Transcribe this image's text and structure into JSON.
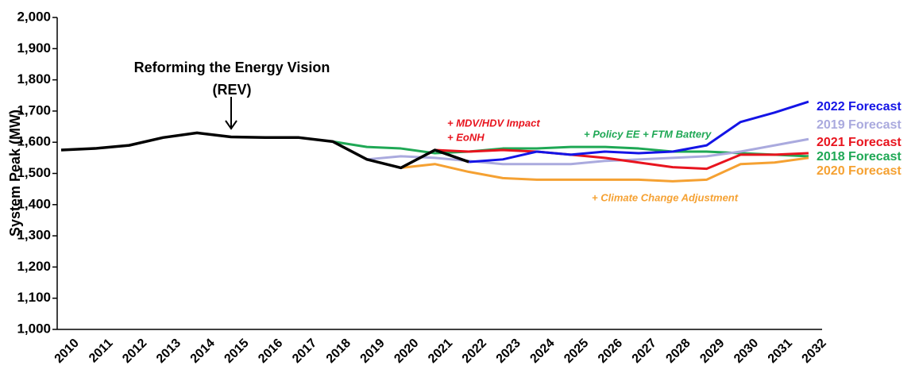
{
  "chart_data": {
    "type": "line",
    "y_label": "System Peak (MW)",
    "categories": [
      "2010",
      "2011",
      "2012",
      "2013",
      "2014",
      "2015",
      "2016",
      "2017",
      "2018",
      "2019",
      "2020",
      "2021",
      "2022",
      "2023",
      "2024",
      "2025",
      "2026",
      "2027",
      "2028",
      "2029",
      "2030",
      "2031",
      "2032"
    ],
    "ylim": [
      1000,
      2000
    ],
    "yticks": [
      {
        "value": 1000,
        "label": "1,000"
      },
      {
        "value": 1100,
        "label": "1,100"
      },
      {
        "value": 1200,
        "label": "1,200"
      },
      {
        "value": 1300,
        "label": "1,300"
      },
      {
        "value": 1400,
        "label": "1,400"
      },
      {
        "value": 1500,
        "label": "1,500"
      },
      {
        "value": 1600,
        "label": "1,600"
      },
      {
        "value": 1700,
        "label": "1,700"
      },
      {
        "value": 1800,
        "label": "1,800"
      },
      {
        "value": 1900,
        "label": "1,900"
      },
      {
        "value": 2000,
        "label": "2,000"
      }
    ],
    "series": [
      {
        "name": "2018 Forecast",
        "color": "#1fa855",
        "values": [
          null,
          null,
          null,
          null,
          null,
          null,
          null,
          null,
          1602,
          1585,
          1580,
          1565,
          1570,
          1580,
          1580,
          1585,
          1585,
          1580,
          1570,
          1570,
          1565,
          1560,
          1555
        ]
      },
      {
        "name": "2019 Forecast",
        "color": "#aaaade",
        "values": [
          null,
          null,
          null,
          null,
          null,
          null,
          null,
          null,
          null,
          1545,
          1555,
          1550,
          1540,
          1530,
          1530,
          1530,
          1540,
          1545,
          1550,
          1555,
          1570,
          1590,
          1610
        ]
      },
      {
        "name": "2020 Forecast",
        "color": "#f5a132",
        "values": [
          null,
          null,
          null,
          null,
          null,
          null,
          null,
          null,
          null,
          null,
          1518,
          1530,
          1505,
          1485,
          1480,
          1480,
          1480,
          1480,
          1475,
          1480,
          1530,
          1535,
          1550
        ]
      },
      {
        "name": "2021 Forecast",
        "color": "#e8141e",
        "values": [
          null,
          null,
          null,
          null,
          null,
          null,
          null,
          null,
          null,
          null,
          null,
          1575,
          1570,
          1575,
          1570,
          1560,
          1550,
          1535,
          1520,
          1515,
          1560,
          1560,
          1565
        ]
      },
      {
        "name": "2022 Forecast",
        "color": "#1414e6",
        "values": [
          null,
          null,
          null,
          null,
          null,
          null,
          null,
          null,
          null,
          null,
          null,
          null,
          1537,
          1545,
          1570,
          1560,
          1570,
          1565,
          1570,
          1590,
          1665,
          1695,
          1730
        ]
      },
      {
        "color": "#000000",
        "values": [
          1575,
          1580,
          1590,
          1615,
          1630,
          1617,
          1615,
          1615,
          1602,
          1545,
          1518,
          1575,
          1537,
          null,
          null,
          null,
          null,
          null,
          null,
          null,
          null,
          null,
          null
        ]
      }
    ],
    "annotations": [
      {
        "text": "Reforming the Energy Vision",
        "color": "#000000"
      },
      {
        "text": "(REV)",
        "color": "#000000"
      },
      {
        "text": "+ MDV/HDV Impact",
        "color": "#e8141e"
      },
      {
        "text": "+ EoNH",
        "color": "#e8141e"
      },
      {
        "text": "+ Policy EE + FTM Battery",
        "color": "#1fa855"
      },
      {
        "text": "+ Climate Change Adjustment",
        "color": "#f5a132"
      }
    ]
  }
}
